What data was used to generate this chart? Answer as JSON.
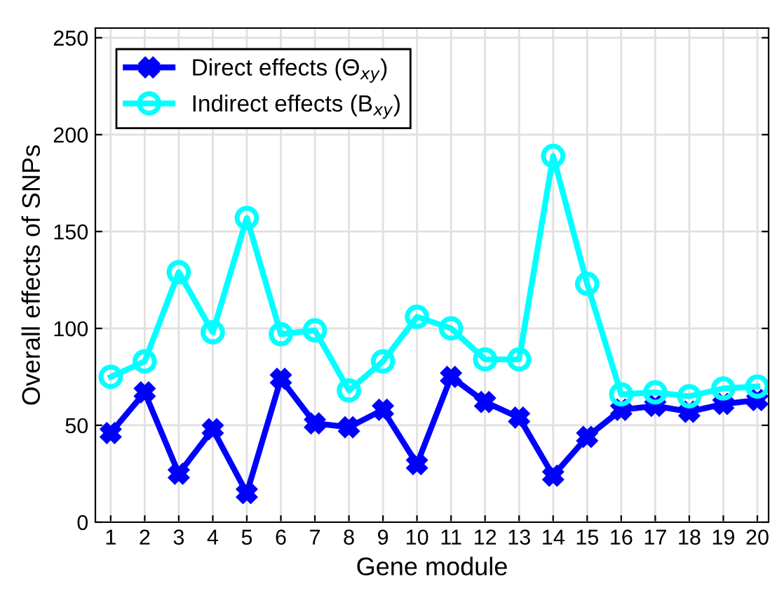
{
  "chart_data": {
    "type": "line",
    "xlabel": "Gene module",
    "ylabel": "Overall effects of SNPs",
    "categories": [
      "1",
      "2",
      "3",
      "4",
      "5",
      "6",
      "7",
      "8",
      "9",
      "10",
      "11",
      "12",
      "13",
      "14",
      "15",
      "16",
      "17",
      "18",
      "19",
      "20"
    ],
    "series": [
      {
        "name": "Direct effects (Θ$_{xy}$)",
        "color": "#0000ff",
        "marker": "cross",
        "values": [
          46,
          67,
          25,
          48,
          15,
          74,
          51,
          49,
          58,
          30,
          75,
          62,
          54,
          24,
          44,
          58,
          60,
          57,
          61,
          63
        ]
      },
      {
        "name": "Indirect effects (B$_{xy}$)",
        "color": "#00ffff",
        "marker": "circle",
        "values": [
          75,
          83,
          129,
          98,
          157,
          97,
          99,
          68,
          83,
          106,
          100,
          84,
          84,
          189,
          123,
          66,
          67,
          65,
          69,
          70
        ]
      }
    ],
    "ylim": [
      0,
      255
    ],
    "yticks": [
      0,
      50,
      100,
      150,
      200,
      250
    ],
    "grid": true,
    "legend": "top left",
    "line_style": "solid"
  }
}
